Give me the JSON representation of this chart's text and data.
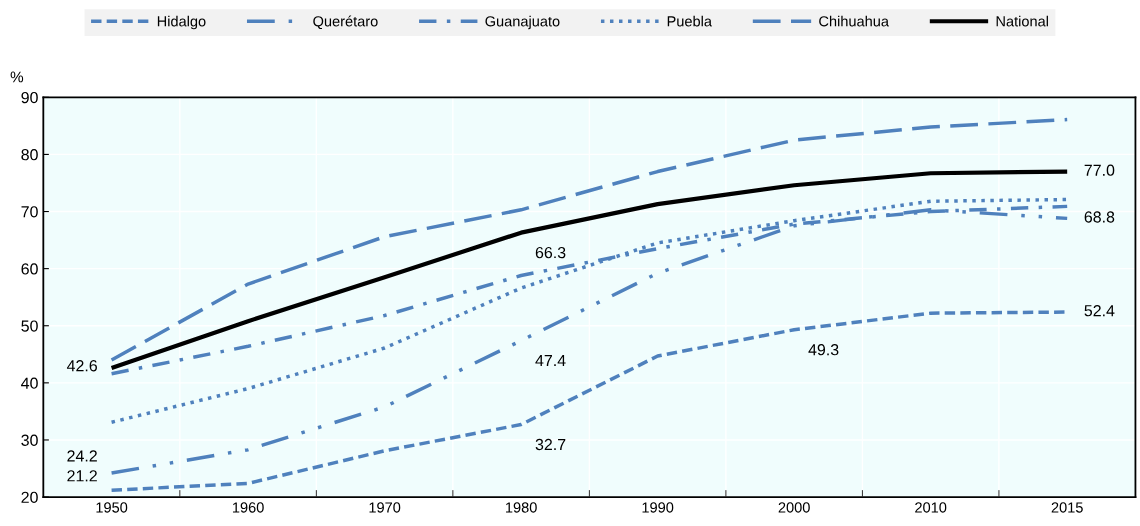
{
  "chart_data": {
    "type": "line",
    "ylabel": "%",
    "categories": [
      "1950",
      "1960",
      "1970",
      "1980",
      "1990",
      "2000",
      "2010",
      "2015"
    ],
    "ylim": [
      20,
      90
    ],
    "yticks": [
      20,
      30,
      40,
      50,
      60,
      70,
      80,
      90
    ],
    "grid": true,
    "legend": "top",
    "series": [
      {
        "name": "Hidalgo",
        "color": "#4f81bd",
        "line_style": "dashed",
        "values": [
          21.2,
          22.4,
          28.1,
          32.7,
          44.7,
          49.3,
          52.2,
          52.4
        ],
        "value_labels": [
          "21.2",
          null,
          null,
          "32.7",
          null,
          "49.3",
          null,
          "52.4"
        ]
      },
      {
        "name": "Querétaro",
        "color": "#4f81bd",
        "line_style": "dashdotdot",
        "values": [
          24.2,
          28.3,
          35.8,
          47.4,
          59.2,
          67.5,
          70.3,
          68.8
        ],
        "value_labels": [
          "24.2",
          null,
          null,
          "47.4",
          null,
          null,
          null,
          "68.8"
        ]
      },
      {
        "name": "Guanajuato",
        "color": "#4f81bd",
        "line_style": "dashdot",
        "values": [
          41.6,
          46.4,
          51.8,
          58.8,
          63.5,
          67.8,
          70.0,
          70.9
        ]
      },
      {
        "name": "Puebla",
        "color": "#4f81bd",
        "line_style": "dotted",
        "values": [
          33.1,
          39.0,
          46.1,
          56.6,
          64.5,
          68.4,
          71.8,
          72.1
        ]
      },
      {
        "name": "Chihuahua",
        "color": "#4f81bd",
        "line_style": "longdash",
        "values": [
          44.0,
          57.3,
          65.6,
          70.3,
          77.0,
          82.5,
          84.8,
          86.1
        ]
      },
      {
        "name": "National",
        "color": "#000000",
        "line_style": "solid",
        "values": [
          42.6,
          50.8,
          58.5,
          66.3,
          71.3,
          74.6,
          76.7,
          77.0
        ],
        "value_labels": [
          "42.6",
          null,
          null,
          "66.3",
          null,
          null,
          null,
          "77.0"
        ]
      }
    ]
  }
}
